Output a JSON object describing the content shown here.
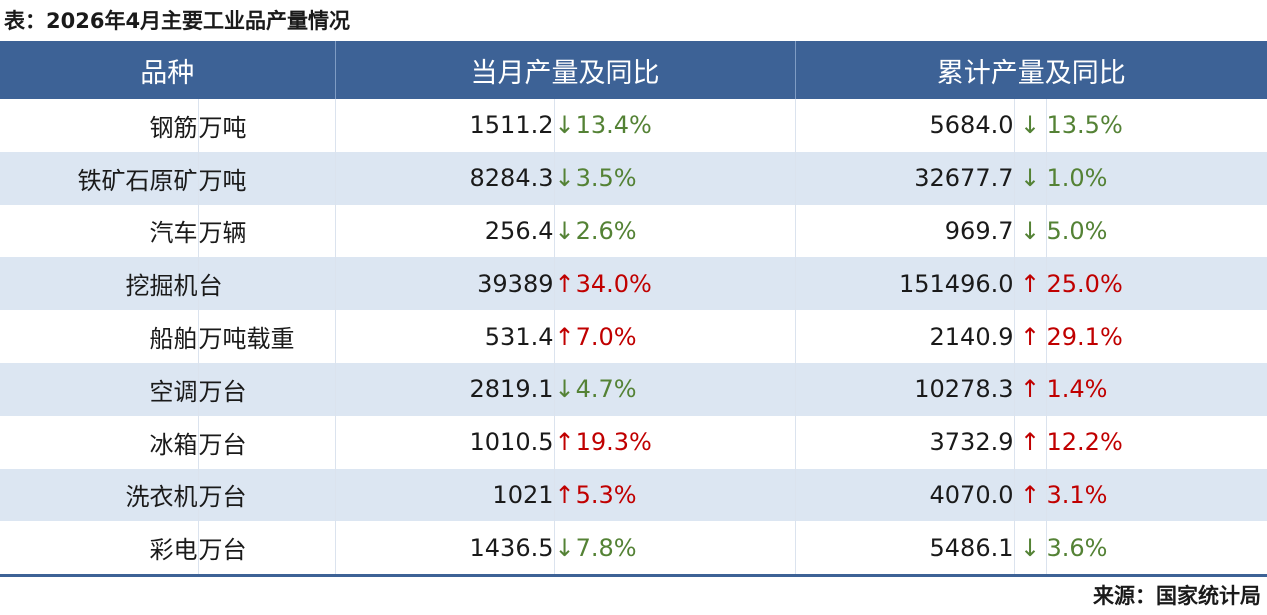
{
  "caption": "表：2026年4月主要工业品产量情况",
  "source": "来源：国家统计局",
  "colors": {
    "header_bg": "#3d6296",
    "stripe_bg": "#dce6f2",
    "up": "#c00000",
    "down": "#548235"
  },
  "chart_data": {
    "type": "table",
    "title": "表：2026年4月主要工业品产量情况",
    "columns": [
      "品种",
      "当月产量及同比",
      "累计产量及同比"
    ],
    "rows": [
      {
        "name": "钢筋",
        "unit": "万吨",
        "month_value": "1511.2",
        "month_arrow": "↓",
        "month_dir": "down",
        "month_yoy": "13.4%",
        "cum_value": "5684.0",
        "cum_arrow": "↓",
        "cum_dir": "down",
        "cum_yoy": "13.5%"
      },
      {
        "name": "铁矿石原矿",
        "unit": "万吨",
        "month_value": "8284.3",
        "month_arrow": "↓",
        "month_dir": "down",
        "month_yoy": "3.5%",
        "cum_value": "32677.7",
        "cum_arrow": "↓",
        "cum_dir": "down",
        "cum_yoy": "1.0%"
      },
      {
        "name": "汽车",
        "unit": "万辆",
        "month_value": "256.4",
        "month_arrow": "↓",
        "month_dir": "down",
        "month_yoy": "2.6%",
        "cum_value": "969.7",
        "cum_arrow": "↓",
        "cum_dir": "down",
        "cum_yoy": "5.0%"
      },
      {
        "name": "挖掘机",
        "unit": "台",
        "month_value": "39389",
        "month_arrow": "↑",
        "month_dir": "up",
        "month_yoy": "34.0%",
        "cum_value": "151496.0",
        "cum_arrow": "↑",
        "cum_dir": "up",
        "cum_yoy": "25.0%"
      },
      {
        "name": "船舶",
        "unit": "万吨载重",
        "month_value": "531.4",
        "month_arrow": "↑",
        "month_dir": "up",
        "month_yoy": "7.0%",
        "cum_value": "2140.9",
        "cum_arrow": "↑",
        "cum_dir": "up",
        "cum_yoy": "29.1%"
      },
      {
        "name": "空调",
        "unit": "万台",
        "month_value": "2819.1",
        "month_arrow": "↓",
        "month_dir": "down",
        "month_yoy": "4.7%",
        "cum_value": "10278.3",
        "cum_arrow": "↑",
        "cum_dir": "up",
        "cum_yoy": "1.4%"
      },
      {
        "name": "冰箱",
        "unit": "万台",
        "month_value": "1010.5",
        "month_arrow": "↑",
        "month_dir": "up",
        "month_yoy": "19.3%",
        "cum_value": "3732.9",
        "cum_arrow": "↑",
        "cum_dir": "up",
        "cum_yoy": "12.2%"
      },
      {
        "name": "洗衣机",
        "unit": "万台",
        "month_value": "1021",
        "month_arrow": "↑",
        "month_dir": "up",
        "month_yoy": "5.3%",
        "cum_value": "4070.0",
        "cum_arrow": "↑",
        "cum_dir": "up",
        "cum_yoy": "3.1%"
      },
      {
        "name": "彩电",
        "unit": "万台",
        "month_value": "1436.5",
        "month_arrow": "↓",
        "month_dir": "down",
        "month_yoy": "7.8%",
        "cum_value": "5486.1",
        "cum_arrow": "↓",
        "cum_dir": "down",
        "cum_yoy": "3.6%"
      }
    ]
  }
}
